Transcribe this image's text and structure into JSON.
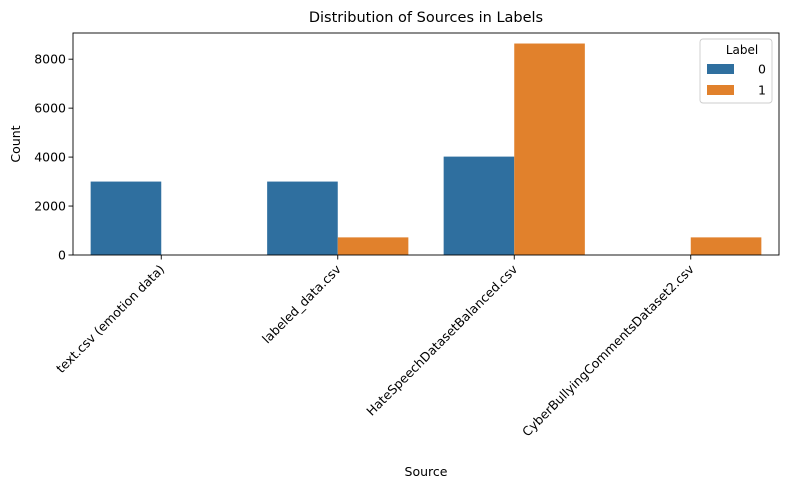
{
  "chart_data": {
    "type": "bar",
    "title": "Distribution of Sources in Labels",
    "xlabel": "Source",
    "ylabel": "Count",
    "categories": [
      "text.csv (emotion data)",
      "labeled_data.csv",
      "HateSpeechDatasetBalanced.csv",
      "CyberBullyingCommentsDataset2.csv"
    ],
    "series": [
      {
        "name": "0",
        "color": "#2f6f9f",
        "values": [
          3000,
          3000,
          4020,
          0
        ]
      },
      {
        "name": "1",
        "color": "#e1812c",
        "values": [
          0,
          720,
          8640,
          720
        ]
      }
    ],
    "ylim": [
      0,
      9070
    ],
    "yticks": [
      0,
      2000,
      4000,
      6000,
      8000
    ],
    "legend": {
      "title": "Label",
      "placement": "top-right"
    },
    "grid": false
  }
}
